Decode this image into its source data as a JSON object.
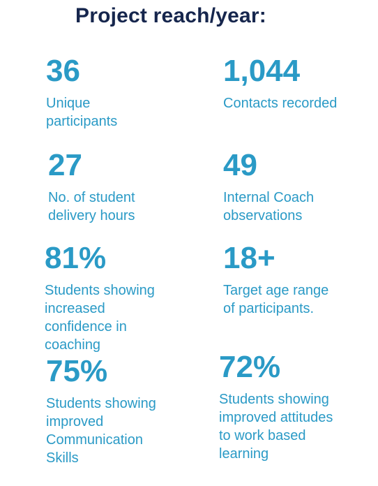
{
  "title": "Project reach/year:",
  "stats": [
    {
      "value": "36",
      "label": "Unique\nparticipants"
    },
    {
      "value": "1,044",
      "label": "Contacts recorded"
    },
    {
      "value": "27",
      "label": "No. of student\ndelivery hours"
    },
    {
      "value": "49",
      "label": "Internal Coach\nobservations"
    },
    {
      "value": "81%",
      "label": "Students showing\nincreased\nconfidence in\ncoaching"
    },
    {
      "value": "18+",
      "label": "Target age range\nof participants."
    },
    {
      "value": "75%",
      "label": "Students showing\nimproved\nCommunication\nSkills"
    },
    {
      "value": "72%",
      "label": "Students showing\nimproved attitudes\nto work based\nlearning"
    }
  ],
  "colors": {
    "title": "#16264d",
    "accent": "#2a9ac6",
    "background": "#ffffff"
  }
}
